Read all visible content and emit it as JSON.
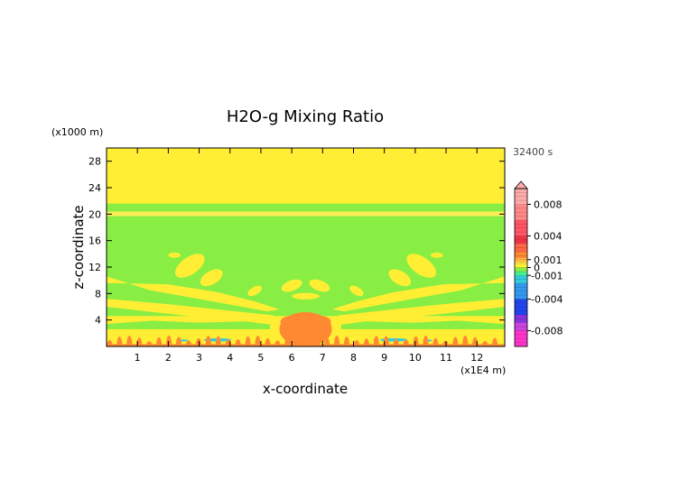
{
  "chart_data": {
    "type": "heatmap",
    "title": "H2O-g Mixing Ratio",
    "xlabel": "x-coordinate",
    "ylabel": "z-coordinate",
    "x_unit": "(x1E4 m)",
    "y_unit": "(x1000 m)",
    "time_label": "32400 s",
    "xlim": [
      0,
      12.9
    ],
    "ylim": [
      0,
      30
    ],
    "x_ticks": [
      "1",
      "2",
      "3",
      "4",
      "5",
      "6",
      "7",
      "8",
      "9",
      "10",
      "11",
      "12"
    ],
    "y_ticks": [
      "4",
      "8",
      "12",
      "16",
      "20",
      "24",
      "28"
    ],
    "colorbar": {
      "ticks": [
        "0.008",
        "0.004",
        "0.001",
        "0",
        "-0.001",
        "-0.004",
        "-0.008"
      ],
      "range": [
        -0.01,
        0.01
      ],
      "colors": {
        "dark_negative": "#ff33cc",
        "purple": "#8833dd",
        "blue": "#2244ee",
        "cyan": "#33ccdd",
        "light_green": "#88ee44",
        "yellow": "#ffee33",
        "orange": "#ff8833",
        "red": "#ee3344",
        "pink": "#ffaaaa"
      }
    }
  }
}
